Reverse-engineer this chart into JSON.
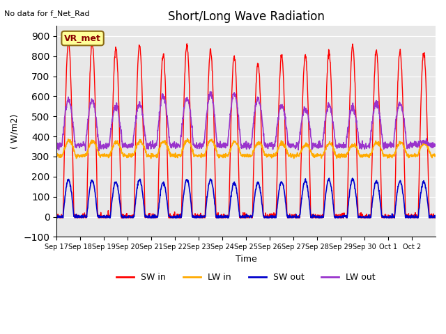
{
  "title": "Short/Long Wave Radiation",
  "xlabel": "Time",
  "ylabel": "( W/m2)",
  "ylim": [
    -100,
    950
  ],
  "yticks": [
    -100,
    0,
    100,
    200,
    300,
    400,
    500,
    600,
    700,
    800,
    900
  ],
  "bg_color": "#e8e8e8",
  "fig_color": "#ffffff",
  "no_data_text": "No data for f_Net_Rad",
  "station_label": "VR_met",
  "num_days": 16,
  "sw_in_color": "#ff0000",
  "lw_in_color": "#ffaa00",
  "sw_out_color": "#0000cc",
  "lw_out_color": "#9933cc",
  "sw_in_peaks": [
    870,
    870,
    840,
    855,
    810,
    860,
    825,
    800,
    760,
    800,
    800,
    820,
    850,
    825,
    820,
    815
  ],
  "sw_out_peaks": [
    185,
    180,
    175,
    185,
    170,
    185,
    185,
    170,
    170,
    175,
    180,
    185,
    185,
    175,
    175,
    175
  ],
  "lw_in_base": 305,
  "lw_in_peaks": [
    380,
    375,
    370,
    375,
    375,
    380,
    380,
    375,
    370,
    365,
    360,
    365,
    360,
    370,
    368,
    365
  ],
  "lw_out_base": 355,
  "lw_out_peaks": [
    580,
    580,
    550,
    560,
    600,
    590,
    610,
    615,
    590,
    555,
    540,
    555,
    545,
    570,
    565,
    375
  ],
  "tick_labels": [
    "Sep 17",
    "Sep 18",
    "Sep 19",
    "Sep 20",
    "Sep 21",
    "Sep 22",
    "Sep 23",
    "Sep 24",
    "Sep 25",
    "Sep 26",
    "Sep 27",
    "Sep 28",
    "Sep 29",
    "Sep 30",
    "Oct 1",
    "Oct 2"
  ]
}
